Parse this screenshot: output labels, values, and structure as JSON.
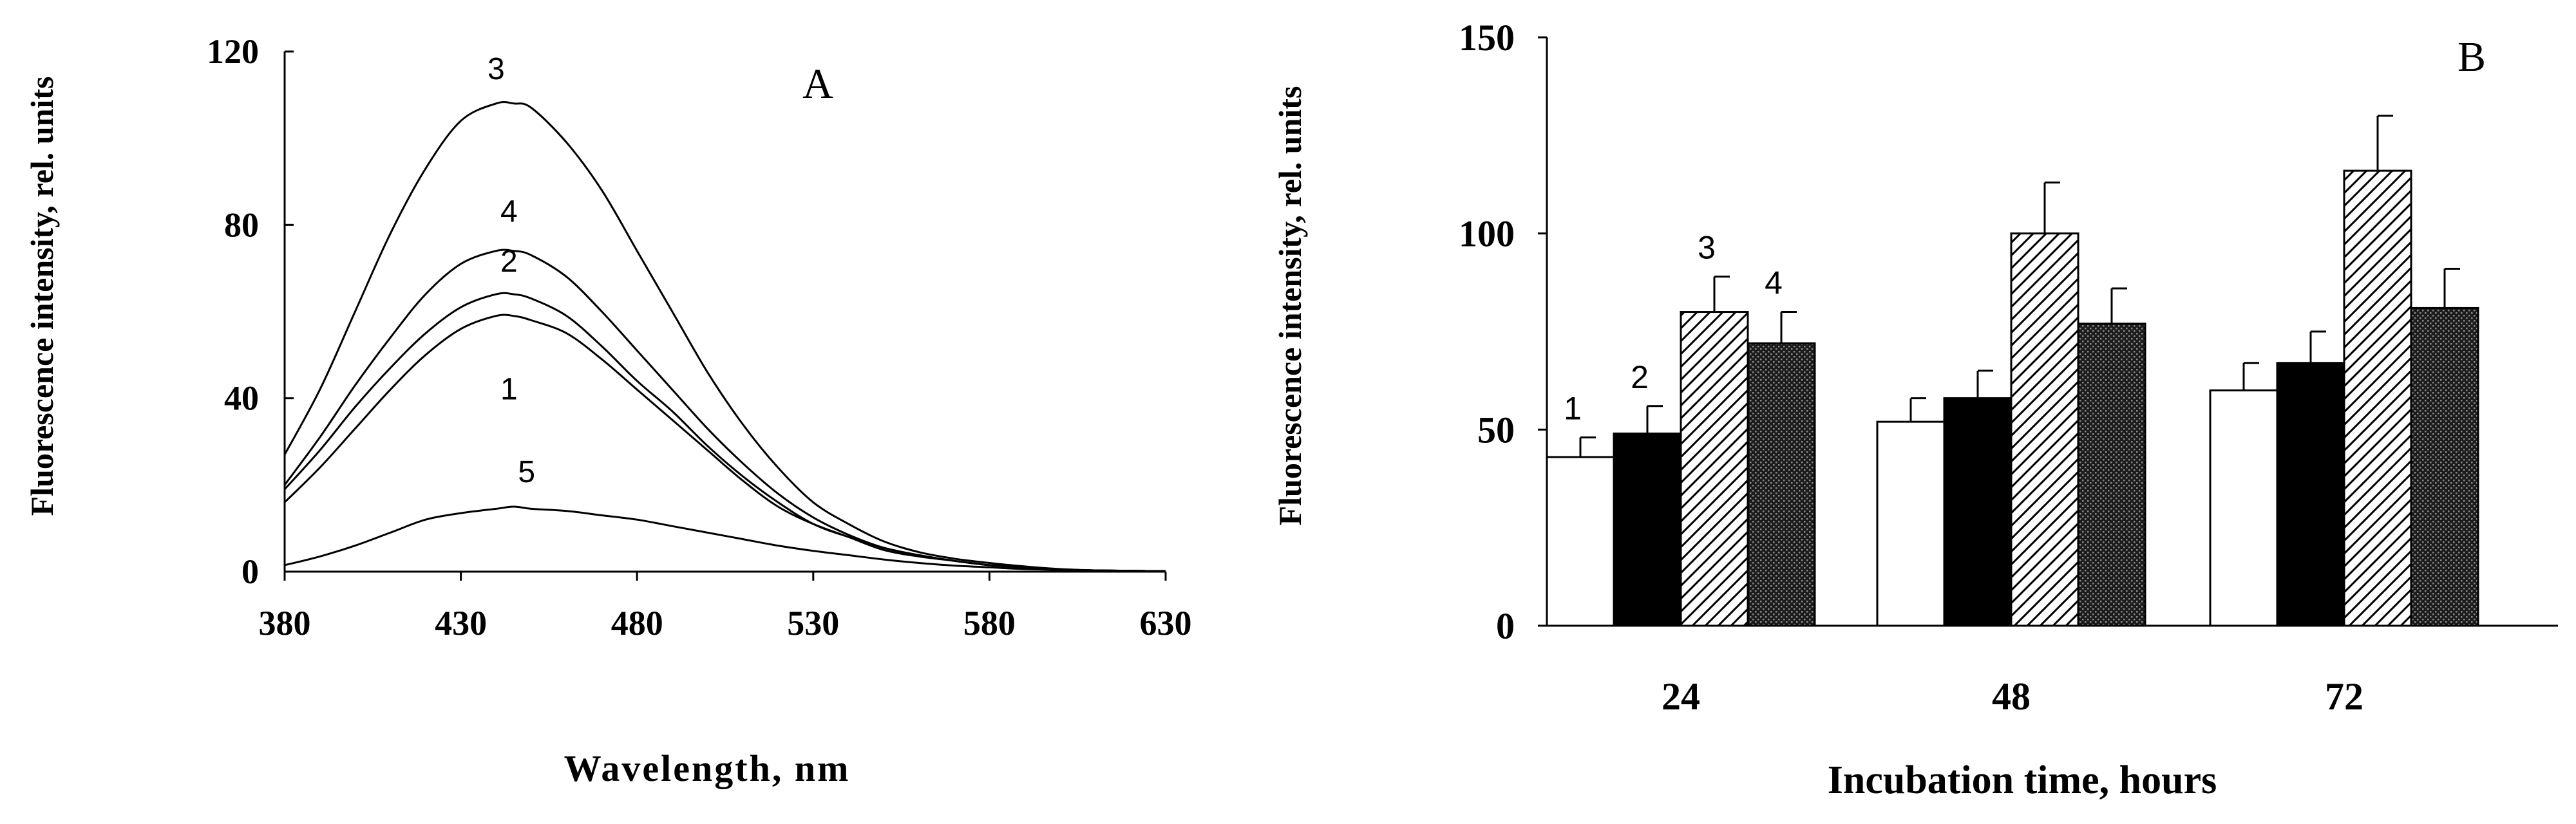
{
  "chart_data": [
    {
      "type": "line",
      "panel_label": "A",
      "xlabel": "Wavelength, nm",
      "ylabel": "Fluorescence intensity, rel. units",
      "xlim": [
        380,
        630
      ],
      "ylim": [
        0,
        120
      ],
      "xticks": [
        "380",
        "430",
        "480",
        "530",
        "580",
        "630"
      ],
      "yticks": [
        "0",
        "40",
        "80",
        "120"
      ],
      "x": [
        380,
        390,
        400,
        410,
        420,
        430,
        440,
        445,
        450,
        460,
        470,
        480,
        490,
        500,
        510,
        520,
        530,
        540,
        550,
        560,
        570,
        580,
        590,
        600,
        610,
        620,
        630
      ],
      "series": [
        {
          "name": "1",
          "values": [
            16,
            24,
            33,
            42,
            50,
            56,
            59,
            59,
            58,
            55,
            49,
            42,
            35,
            28,
            21,
            15,
            11,
            8,
            5,
            3.5,
            2.5,
            1.5,
            1,
            0.5,
            0.3,
            0.2,
            0.1
          ]
        },
        {
          "name": "2",
          "values": [
            19,
            28,
            38,
            47,
            55,
            61,
            64,
            64,
            63,
            59,
            52,
            44,
            37,
            29,
            22,
            16,
            11,
            8,
            5.5,
            3.8,
            2.5,
            1.5,
            1,
            0.5,
            0.3,
            0.2,
            0.1
          ]
        },
        {
          "name": "3",
          "values": [
            27,
            42,
            60,
            78,
            93,
            104,
            108,
            108,
            107,
            99,
            88,
            74,
            60,
            46,
            34,
            24,
            16,
            11,
            7,
            4.5,
            3,
            2,
            1.2,
            0.6,
            0.3,
            0.2,
            0.1
          ]
        },
        {
          "name": "4",
          "values": [
            20,
            31,
            43,
            54,
            64,
            71,
            74,
            74,
            73,
            68,
            60,
            51,
            42,
            33,
            25,
            18,
            12.5,
            8.5,
            5.5,
            3.8,
            2.5,
            1.5,
            1,
            0.5,
            0.3,
            0.2,
            0.1
          ]
        },
        {
          "name": "5",
          "values": [
            1.5,
            3.5,
            6,
            9,
            12,
            13.5,
            14.5,
            15,
            14.5,
            14,
            13,
            12,
            10.5,
            9,
            7.5,
            6,
            4.8,
            3.8,
            2.8,
            2,
            1.4,
            1,
            0.6,
            0.4,
            0.2,
            0.1,
            0.1
          ]
        }
      ],
      "grid": false
    },
    {
      "type": "bar",
      "panel_label": "B",
      "xlabel": "Incubation time, hours",
      "ylabel": "Fluorescence intensity, rel. units",
      "ylim": [
        0,
        150
      ],
      "yticks": [
        "0",
        "50",
        "100",
        "150"
      ],
      "categories": [
        "24",
        "48",
        "72"
      ],
      "series": [
        {
          "name": "1",
          "fill": "white",
          "values": [
            43,
            52,
            60
          ],
          "errors": [
            5,
            6,
            7
          ]
        },
        {
          "name": "2",
          "fill": "black",
          "values": [
            49,
            58,
            67
          ],
          "errors": [
            7,
            7,
            8
          ]
        },
        {
          "name": "3",
          "fill": "diagonal-hatch",
          "values": [
            80,
            100,
            116
          ],
          "errors": [
            9,
            13,
            14
          ]
        },
        {
          "name": "4",
          "fill": "dense-dots",
          "values": [
            72,
            77,
            81
          ],
          "errors": [
            8,
            9,
            10
          ]
        }
      ],
      "grid": false
    }
  ]
}
